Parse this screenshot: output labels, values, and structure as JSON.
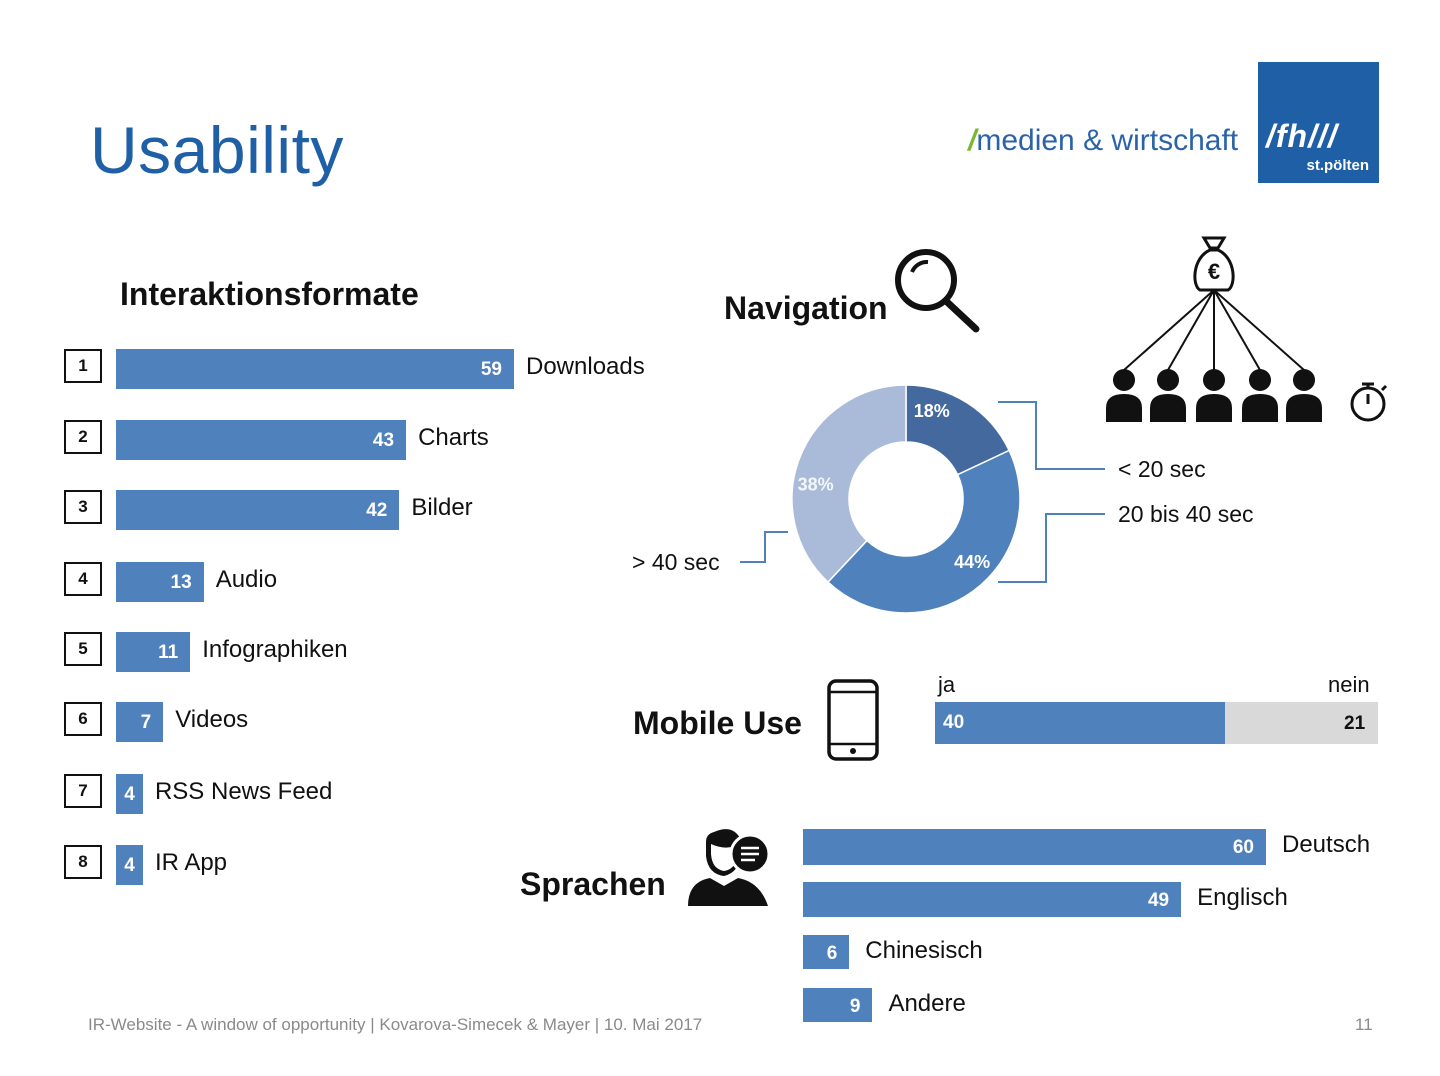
{
  "page": {
    "title": "Usability",
    "footer": "IR-Website - A window of opportunity | Kovarova-Simecek & Mayer | 10. Mai 2017",
    "page_number": "11"
  },
  "logo": {
    "slash": "/",
    "text": "medien & wirtschaft",
    "fh": "/fh///",
    "location": "st.pölten"
  },
  "sections": {
    "interaktion": "Interaktionsformate",
    "navigation": "Navigation",
    "mobile": "Mobile Use",
    "sprachen": "Sprachen"
  },
  "icons": {
    "magnifier": "magnifier-icon",
    "money_bag": "money-bag-icon",
    "people": "people-icon",
    "stopwatch": "stopwatch-icon",
    "phone": "smartphone-icon",
    "speaker": "speaker-icon"
  },
  "colors": {
    "title": "#1f5fa6",
    "bar": "#4f81bd",
    "donut_dark": "#44699f",
    "donut_mid": "#4f81bd",
    "donut_light": "#a9bbd9",
    "no_bar": "#d9d9d9"
  },
  "chart_data": [
    {
      "type": "bar",
      "orientation": "horizontal",
      "title": "Interaktionsformate",
      "ranks": [
        "1",
        "2",
        "3",
        "4",
        "5",
        "6",
        "7",
        "8"
      ],
      "categories": [
        "Downloads",
        "Charts",
        "Bilder",
        "Audio",
        "Infographiken",
        "Videos",
        "RSS News Feed",
        "IR App"
      ],
      "values": [
        59,
        43,
        42,
        13,
        11,
        7,
        4,
        4
      ]
    },
    {
      "type": "pie",
      "subtype": "donut",
      "title": "Navigation",
      "labels": [
        "< 20 sec",
        "20 bis 40 sec",
        "> 40 sec"
      ],
      "values": [
        18,
        44,
        38
      ],
      "value_labels": [
        "18%",
        "44%",
        "38%"
      ]
    },
    {
      "type": "bar",
      "subtype": "stacked",
      "orientation": "horizontal",
      "title": "Mobile Use",
      "labels": [
        "ja",
        "nein"
      ],
      "values": [
        40,
        21
      ]
    },
    {
      "type": "bar",
      "orientation": "horizontal",
      "title": "Sprachen",
      "categories": [
        "Deutsch",
        "Englisch",
        "Chinesisch",
        "Andere"
      ],
      "values": [
        60,
        49,
        6,
        9
      ]
    }
  ]
}
